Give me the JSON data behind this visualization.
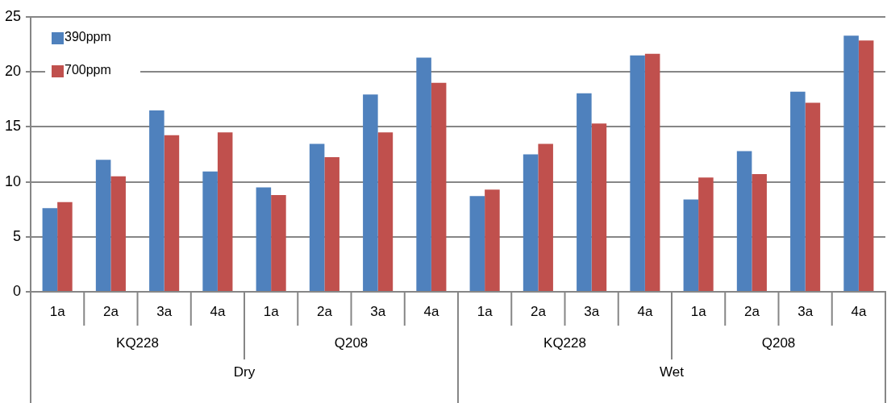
{
  "chart_data": {
    "type": "bar",
    "categories": [
      "1a",
      "2a",
      "3a",
      "4a",
      "1a",
      "2a",
      "3a",
      "4a",
      "1a",
      "2a",
      "3a",
      "4a",
      "1a",
      "2a",
      "3a",
      "4a"
    ],
    "series": [
      {
        "name": "390ppm",
        "color": "#4f81bd",
        "values": [
          7.6,
          12.0,
          16.5,
          10.95,
          9.5,
          13.45,
          17.95,
          21.3,
          8.7,
          12.5,
          18.05,
          21.5,
          8.4,
          12.8,
          18.2,
          23.3
        ]
      },
      {
        "name": "700ppm",
        "color": "#c0504d",
        "values": [
          8.15,
          10.5,
          14.25,
          14.5,
          8.8,
          12.25,
          14.5,
          19.0,
          9.3,
          13.45,
          15.3,
          21.65,
          10.4,
          10.7,
          17.2,
          22.85
        ]
      }
    ],
    "annotations": [
      "KQ228",
      "Q208",
      "KQ228",
      "Q208",
      "Dry",
      "Wet"
    ],
    "ylim": [
      0,
      25
    ],
    "yticks": [
      0,
      5,
      10,
      15,
      20,
      25
    ],
    "grid": "y",
    "legend": "top left"
  }
}
